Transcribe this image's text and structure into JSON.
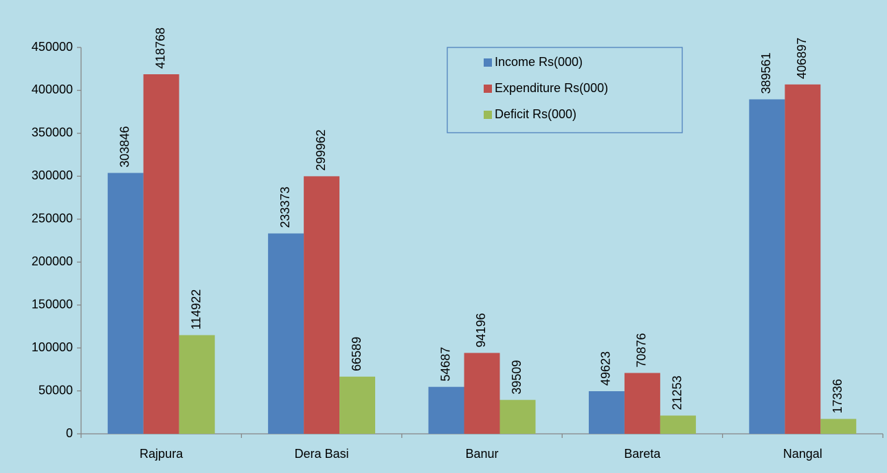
{
  "chart_data": {
    "type": "bar",
    "categories": [
      "Rajpura",
      "Dera Basi",
      "Banur",
      "Bareta",
      "Nangal"
    ],
    "series": [
      {
        "name": "Income Rs(000)",
        "color": "#4f81bd",
        "values": [
          303846,
          233373,
          54687,
          49623,
          389561
        ]
      },
      {
        "name": "Expenditure Rs(000)",
        "color": "#c0504d",
        "values": [
          418768,
          299962,
          94196,
          70876,
          406897
        ]
      },
      {
        "name": "Deficit Rs(000)",
        "color": "#9bbb59",
        "values": [
          114922,
          66589,
          39509,
          21253,
          17336
        ]
      }
    ],
    "ylim": [
      0,
      450000
    ],
    "yticks": [
      0,
      50000,
      100000,
      150000,
      200000,
      250000,
      300000,
      350000,
      400000,
      450000
    ],
    "legend": "top-right",
    "grid": false
  }
}
